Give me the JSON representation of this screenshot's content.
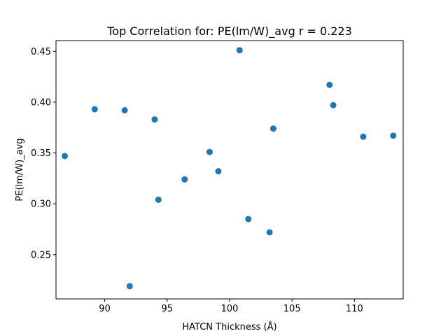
{
  "chart_data": {
    "type": "scatter",
    "title": "Top Correlation for: PE(lm/W)_avg r = 0.223",
    "xlabel": "HATCN Thickness (Å)",
    "ylabel": "PE(lm/W)_avg",
    "xlim": [
      86.1,
      113.9
    ],
    "ylim": [
      0.2065,
      0.4605
    ],
    "xticks": [
      90,
      95,
      100,
      105,
      110
    ],
    "xtick_labels": [
      "90",
      "95",
      "100",
      "105",
      "110"
    ],
    "yticks": [
      0.25,
      0.3,
      0.35,
      0.4,
      0.45
    ],
    "ytick_labels": [
      "0.25",
      "0.30",
      "0.35",
      "0.40",
      "0.45"
    ],
    "grid": false,
    "legend": false,
    "marker_color": "#1f77b4",
    "points": [
      {
        "x": 86.8,
        "y": 0.347
      },
      {
        "x": 89.2,
        "y": 0.393
      },
      {
        "x": 91.6,
        "y": 0.392
      },
      {
        "x": 92.0,
        "y": 0.219
      },
      {
        "x": 94.0,
        "y": 0.383
      },
      {
        "x": 94.3,
        "y": 0.304
      },
      {
        "x": 96.4,
        "y": 0.324
      },
      {
        "x": 98.4,
        "y": 0.351
      },
      {
        "x": 99.1,
        "y": 0.332
      },
      {
        "x": 100.8,
        "y": 0.451
      },
      {
        "x": 101.5,
        "y": 0.285
      },
      {
        "x": 103.2,
        "y": 0.272
      },
      {
        "x": 103.5,
        "y": 0.374
      },
      {
        "x": 108.0,
        "y": 0.417
      },
      {
        "x": 108.3,
        "y": 0.397
      },
      {
        "x": 110.7,
        "y": 0.366
      },
      {
        "x": 113.1,
        "y": 0.367
      }
    ]
  }
}
